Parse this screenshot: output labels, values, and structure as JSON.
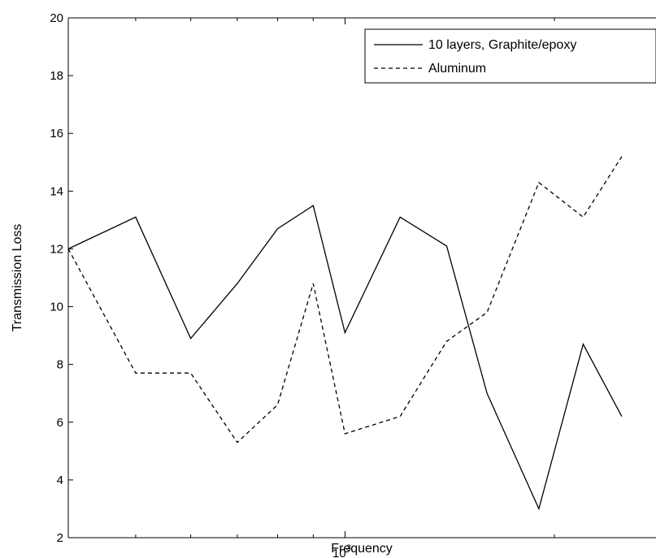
{
  "chart_data": {
    "type": "line",
    "title": "",
    "xlabel": "Frequency",
    "ylabel": "Transmission Loss",
    "x_scale": "log",
    "xlim": [
      400,
      2800
    ],
    "ylim": [
      2,
      20
    ],
    "y_ticks": [
      2,
      4,
      6,
      8,
      10,
      12,
      14,
      16,
      18,
      20
    ],
    "x_ticks": [
      {
        "value": 1000,
        "base": "10",
        "exp": "3"
      }
    ],
    "x_minor_ticks": [
      500,
      600,
      700,
      800,
      900,
      2000
    ],
    "grid": false,
    "legend_position": "top-right",
    "series": [
      {
        "name": "10 layers, Graphite/epoxy",
        "style": "solid",
        "color": "#000000",
        "x": [
          400,
          500,
          600,
          700,
          800,
          900,
          1000,
          1200,
          1400,
          1600,
          1900,
          2200,
          2500
        ],
        "y": [
          12,
          13.1,
          8.9,
          10.8,
          12.7,
          13.5,
          9.1,
          13.1,
          12.1,
          7.0,
          3.0,
          8.7,
          6.2
        ]
      },
      {
        "name": "Aluminum",
        "style": "dashed",
        "color": "#000000",
        "x": [
          400,
          500,
          600,
          700,
          800,
          900,
          1000,
          1200,
          1400,
          1600,
          1900,
          2200,
          2500
        ],
        "y": [
          12,
          7.7,
          7.7,
          5.3,
          6.6,
          10.8,
          5.6,
          6.2,
          8.8,
          9.8,
          14.3,
          13.1,
          15.2
        ]
      }
    ]
  }
}
